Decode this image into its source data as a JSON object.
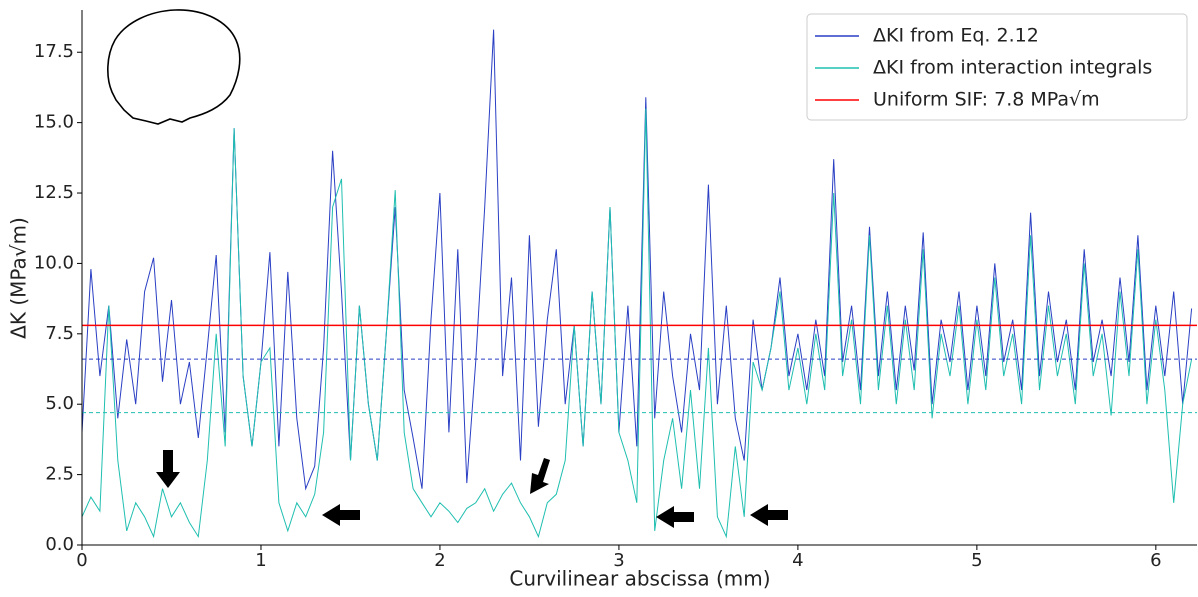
{
  "chart_data": {
    "type": "line",
    "xlabel": "Curvilinear abscissa (mm)",
    "ylabel": "ΔK  (MPa√m)",
    "xlim": [
      0,
      6.23
    ],
    "ylim": [
      0,
      19
    ],
    "xticks": [
      0,
      1,
      2,
      3,
      4,
      5,
      6
    ],
    "yticks": [
      {
        "value": 0,
        "label": "0.0"
      },
      2.5,
      {
        "value": 5,
        "label": "5.0"
      },
      7.5,
      {
        "value": 10,
        "label": "10.0"
      },
      12.5,
      {
        "value": 15,
        "label": "15.0"
      },
      17.5
    ],
    "legend": "upper right",
    "x": [
      0,
      0.05,
      0.1,
      0.15,
      0.2,
      0.25,
      0.3,
      0.35,
      0.4,
      0.45,
      0.5,
      0.55,
      0.6,
      0.65,
      0.7,
      0.75,
      0.8,
      0.85,
      0.9,
      0.95,
      1,
      1.05,
      1.1,
      1.15,
      1.2,
      1.25,
      1.3,
      1.35,
      1.4,
      1.45,
      1.5,
      1.55,
      1.6,
      1.65,
      1.7,
      1.75,
      1.8,
      1.85,
      1.9,
      1.95,
      2,
      2.05,
      2.1,
      2.15,
      2.2,
      2.25,
      2.3,
      2.35,
      2.4,
      2.45,
      2.5,
      2.55,
      2.6,
      2.65,
      2.7,
      2.75,
      2.8,
      2.85,
      2.9,
      2.95,
      3,
      3.05,
      3.1,
      3.15,
      3.2,
      3.25,
      3.3,
      3.35,
      3.4,
      3.45,
      3.5,
      3.55,
      3.6,
      3.65,
      3.7,
      3.75,
      3.8,
      3.85,
      3.9,
      3.95,
      4,
      4.05,
      4.1,
      4.15,
      4.2,
      4.25,
      4.3,
      4.35,
      4.4,
      4.45,
      4.5,
      4.55,
      4.6,
      4.65,
      4.7,
      4.75,
      4.8,
      4.85,
      4.9,
      4.95,
      5,
      5.05,
      5.1,
      5.15,
      5.2,
      5.25,
      5.3,
      5.35,
      5.4,
      5.45,
      5.5,
      5.55,
      5.6,
      5.65,
      5.7,
      5.75,
      5.8,
      5.85,
      5.9,
      5.95,
      6,
      6.05,
      6.1,
      6.15,
      6.2
    ],
    "series": [
      {
        "name": "ΔKI from Eq. 2.12",
        "color": "#2a3fc4",
        "values": [
          4.0,
          9.8,
          6.0,
          8.5,
          4.5,
          7.3,
          5.0,
          9.0,
          10.2,
          5.8,
          8.7,
          5.0,
          6.5,
          3.8,
          7.0,
          10.3,
          4.0,
          14.8,
          6.0,
          3.5,
          6.5,
          10.4,
          3.5,
          9.7,
          4.5,
          2.0,
          2.8,
          7.0,
          14.0,
          9.0,
          3.0,
          8.5,
          5.0,
          3.0,
          7.5,
          12.0,
          5.5,
          3.8,
          2.0,
          8.0,
          12.5,
          4.0,
          10.5,
          2.2,
          6.5,
          12.0,
          18.3,
          6.0,
          9.5,
          3.0,
          11.0,
          4.2,
          8.0,
          10.5,
          5.0,
          7.8,
          3.5,
          9.0,
          5.0,
          12.0,
          4.0,
          8.5,
          3.5,
          15.9,
          4.5,
          9.0,
          6.0,
          4.0,
          7.5,
          5.5,
          12.8,
          5.0,
          8.5,
          4.5,
          3.0,
          8.0,
          5.5,
          7.0,
          9.5,
          6.0,
          7.5,
          5.5,
          8.0,
          6.0,
          13.7,
          6.5,
          8.5,
          5.5,
          11.3,
          6.0,
          9.0,
          5.5,
          8.5,
          6.2,
          11.1,
          5.0,
          8.0,
          6.5,
          9.0,
          5.5,
          8.5,
          6.0,
          10.0,
          6.5,
          8.0,
          5.5,
          11.8,
          6.0,
          9.0,
          6.5,
          8.0,
          5.5,
          10.5,
          6.5,
          8.0,
          6.0,
          9.5,
          6.5,
          11.0,
          5.5,
          8.5,
          6.0,
          9.0,
          5.0,
          8.4
        ]
      },
      {
        "name": "ΔKI from interaction integrals",
        "color": "#1fbfb0",
        "values": [
          1.0,
          1.7,
          1.2,
          8.5,
          3.0,
          0.5,
          1.5,
          1.0,
          0.3,
          2.0,
          1.0,
          1.5,
          0.8,
          0.3,
          3.0,
          7.5,
          3.5,
          14.8,
          6.0,
          3.5,
          6.5,
          7.0,
          1.5,
          0.5,
          1.5,
          1.0,
          1.8,
          4.0,
          12.0,
          13.0,
          3.0,
          8.5,
          5.0,
          3.0,
          7.5,
          12.6,
          4.0,
          2.0,
          1.5,
          1.0,
          1.5,
          1.2,
          0.8,
          1.3,
          1.5,
          2.0,
          1.2,
          1.8,
          2.2,
          1.5,
          1.0,
          0.3,
          1.5,
          1.8,
          3.0,
          7.8,
          3.5,
          9.0,
          5.0,
          12.0,
          4.0,
          3.0,
          1.5,
          15.5,
          0.5,
          3.0,
          4.5,
          2.0,
          5.5,
          2.0,
          7.0,
          1.0,
          0.3,
          3.5,
          1.0,
          6.5,
          5.5,
          7.0,
          9.0,
          5.5,
          7.0,
          5.0,
          7.5,
          5.5,
          12.5,
          6.0,
          8.0,
          5.0,
          11.0,
          5.5,
          8.5,
          5.0,
          8.0,
          5.5,
          10.5,
          4.5,
          7.5,
          6.0,
          8.5,
          5.0,
          8.0,
          5.5,
          9.5,
          6.0,
          7.5,
          5.0,
          11.0,
          5.5,
          8.5,
          6.0,
          7.5,
          5.0,
          10.0,
          6.0,
          7.5,
          4.6,
          9.0,
          6.0,
          10.5,
          5.0,
          8.0,
          5.5,
          1.5,
          5.0,
          6.6
        ]
      }
    ],
    "hlines": [
      {
        "name": "Uniform SIF: 7.8 MPa√m",
        "value": 7.8,
        "color": "#ff0000",
        "style": "solid"
      },
      {
        "value": 6.6,
        "color": "#2a3fc4",
        "style": "dashed"
      },
      {
        "value": 4.7,
        "color": "#1fbfb0",
        "style": "dashed"
      }
    ]
  }
}
